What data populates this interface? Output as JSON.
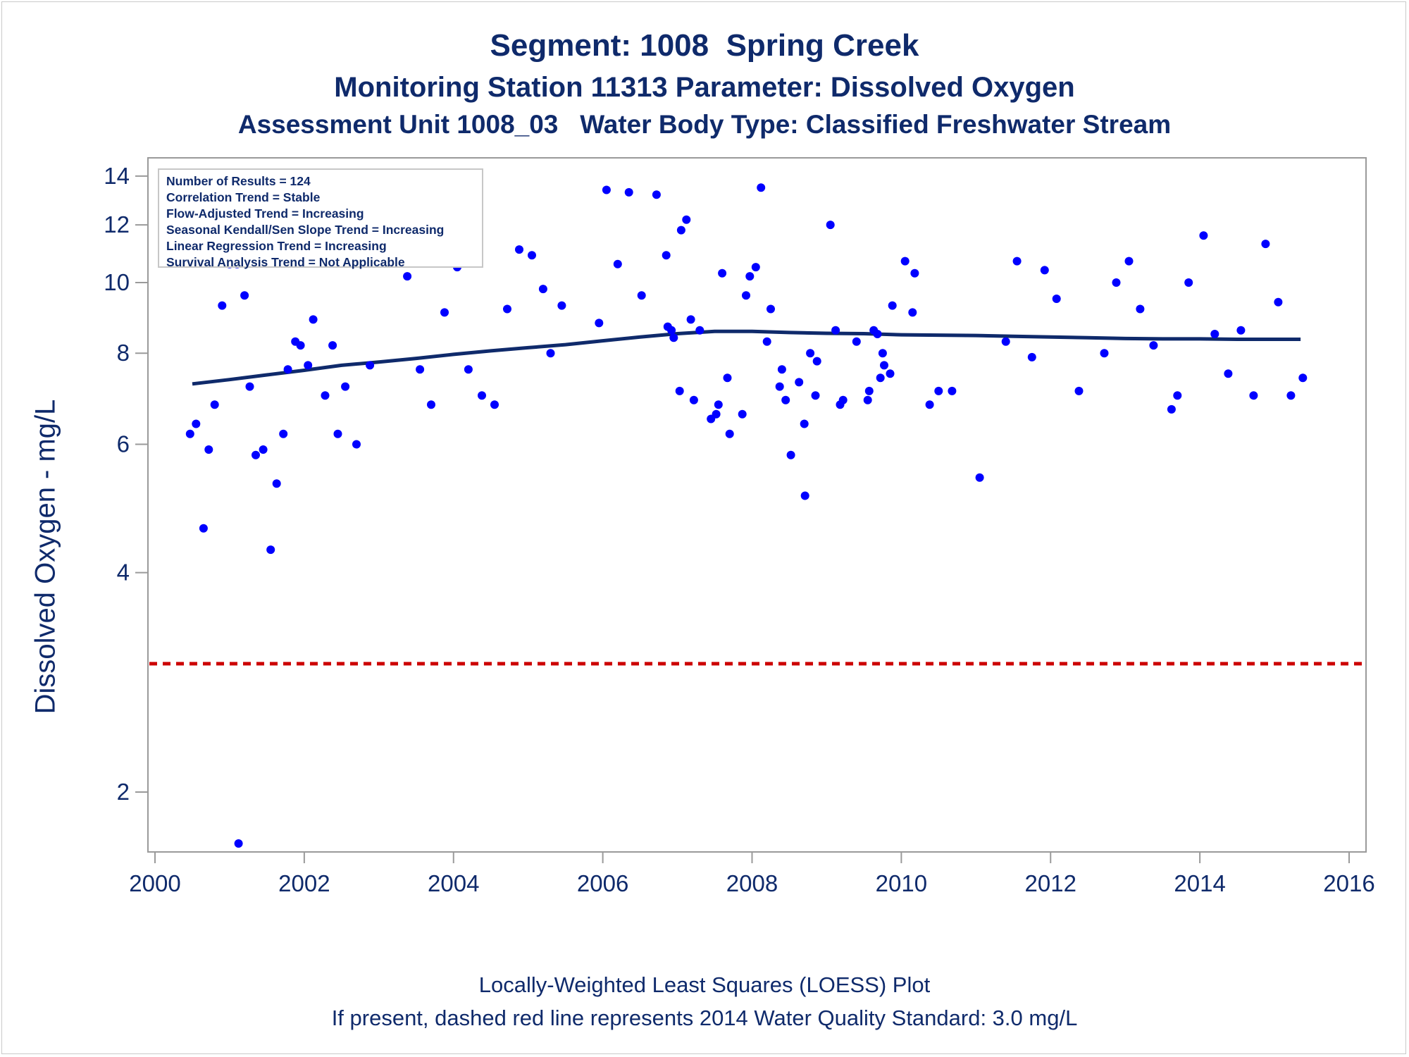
{
  "header": {
    "title": "Segment: 1008  Spring Creek",
    "subtitle": "Monitoring Station 11313 Parameter: Dissolved Oxygen",
    "subtitle2": "Assessment Unit 1008_03   Water Body Type: Classified Freshwater Stream"
  },
  "stats_box": {
    "lines": [
      "Number of Results = 124",
      "Correlation Trend = Stable",
      "Flow-Adjusted Trend = Increasing",
      "Seasonal Kendall/Sen Slope Trend = Increasing",
      "Linear Regression Trend = Increasing",
      "Survival Analysis Trend = Not Applicable"
    ]
  },
  "footnotes": {
    "line1": "Locally-Weighted Least Squares (LOESS) Plot",
    "line2": "If present, dashed red line represents 2014 Water Quality Standard: 3.0 mg/L"
  },
  "colors": {
    "text": "#0f2a6b",
    "points": "#0000ff",
    "loess": "#0f2a6b",
    "standard_line": "#cc0000",
    "axis": "#9a9a9a"
  },
  "chart_data": {
    "type": "scatter",
    "title": "Segment: 1008  Spring Creek",
    "xlabel": "",
    "ylabel": "Dissolved Oxygen - mg/L",
    "xlim": [
      2000,
      2016
    ],
    "ylim": [
      1.7,
      14.6
    ],
    "yscale": "log",
    "xticks": [
      2000,
      2002,
      2004,
      2006,
      2008,
      2010,
      2012,
      2014,
      2016
    ],
    "yticks": [
      2,
      4,
      6,
      8,
      10,
      12,
      14
    ],
    "grid": false,
    "series": [
      {
        "type": "scatter",
        "points": [
          [
            2000.47,
            6.2
          ],
          [
            2000.55,
            6.4
          ],
          [
            2000.65,
            4.6
          ],
          [
            2000.72,
            5.9
          ],
          [
            2000.8,
            6.8
          ],
          [
            2000.9,
            9.3
          ],
          [
            2001.0,
            10.6
          ],
          [
            2001.1,
            10.6
          ],
          [
            2001.12,
            1.7
          ],
          [
            2001.2,
            9.6
          ],
          [
            2001.27,
            7.2
          ],
          [
            2001.35,
            5.8
          ],
          [
            2001.45,
            5.9
          ],
          [
            2001.55,
            4.3
          ],
          [
            2001.63,
            5.3
          ],
          [
            2001.72,
            6.2
          ],
          [
            2001.78,
            7.6
          ],
          [
            2001.88,
            8.3
          ],
          [
            2001.95,
            8.2
          ],
          [
            2002.05,
            7.7
          ],
          [
            2002.12,
            8.9
          ],
          [
            2002.28,
            7.0
          ],
          [
            2002.38,
            8.2
          ],
          [
            2002.45,
            6.2
          ],
          [
            2002.55,
            7.2
          ],
          [
            2002.7,
            6.0
          ],
          [
            2002.88,
            7.7
          ],
          [
            2003.38,
            10.2
          ],
          [
            2003.55,
            7.6
          ],
          [
            2003.7,
            6.8
          ],
          [
            2003.88,
            9.1
          ],
          [
            2004.05,
            10.5
          ],
          [
            2004.2,
            7.6
          ],
          [
            2004.38,
            7.0
          ],
          [
            2004.55,
            6.8
          ],
          [
            2004.72,
            9.2
          ],
          [
            2004.88,
            11.1
          ],
          [
            2005.05,
            10.9
          ],
          [
            2005.2,
            9.8
          ],
          [
            2005.3,
            8.0
          ],
          [
            2005.45,
            9.3
          ],
          [
            2005.95,
            8.8
          ],
          [
            2006.05,
            13.4
          ],
          [
            2006.2,
            10.6
          ],
          [
            2006.35,
            13.3
          ],
          [
            2006.52,
            9.6
          ],
          [
            2006.72,
            13.2
          ],
          [
            2006.85,
            10.9
          ],
          [
            2006.87,
            8.7
          ],
          [
            2006.92,
            8.6
          ],
          [
            2006.95,
            8.4
          ],
          [
            2007.03,
            7.1
          ],
          [
            2007.05,
            11.8
          ],
          [
            2007.12,
            12.2
          ],
          [
            2007.18,
            8.9
          ],
          [
            2007.22,
            6.9
          ],
          [
            2007.3,
            8.6
          ],
          [
            2007.45,
            6.5
          ],
          [
            2007.52,
            6.6
          ],
          [
            2007.55,
            6.8
          ],
          [
            2007.6,
            10.3
          ],
          [
            2007.67,
            7.4
          ],
          [
            2007.7,
            6.2
          ],
          [
            2007.87,
            6.6
          ],
          [
            2007.92,
            9.6
          ],
          [
            2007.97,
            10.2
          ],
          [
            2008.05,
            10.5
          ],
          [
            2008.12,
            13.5
          ],
          [
            2008.2,
            8.3
          ],
          [
            2008.25,
            9.2
          ],
          [
            2008.37,
            7.2
          ],
          [
            2008.4,
            7.6
          ],
          [
            2008.45,
            6.9
          ],
          [
            2008.52,
            5.8
          ],
          [
            2008.63,
            7.3
          ],
          [
            2008.7,
            6.4
          ],
          [
            2008.71,
            5.1
          ],
          [
            2008.78,
            8.0
          ],
          [
            2008.85,
            7.0
          ],
          [
            2008.87,
            7.8
          ],
          [
            2009.05,
            12.0
          ],
          [
            2009.12,
            8.6
          ],
          [
            2009.18,
            6.8
          ],
          [
            2009.22,
            6.9
          ],
          [
            2009.4,
            8.3
          ],
          [
            2009.55,
            6.9
          ],
          [
            2009.57,
            7.1
          ],
          [
            2009.63,
            8.6
          ],
          [
            2009.68,
            8.5
          ],
          [
            2009.72,
            7.4
          ],
          [
            2009.75,
            8.0
          ],
          [
            2009.77,
            7.7
          ],
          [
            2009.85,
            7.5
          ],
          [
            2009.88,
            9.3
          ],
          [
            2010.05,
            10.7
          ],
          [
            2010.15,
            9.1
          ],
          [
            2010.18,
            10.3
          ],
          [
            2010.38,
            6.8
          ],
          [
            2010.5,
            7.1
          ],
          [
            2010.68,
            7.1
          ],
          [
            2011.05,
            5.4
          ],
          [
            2011.4,
            8.3
          ],
          [
            2011.55,
            10.7
          ],
          [
            2011.75,
            7.9
          ],
          [
            2011.92,
            10.4
          ],
          [
            2012.08,
            9.5
          ],
          [
            2012.38,
            7.1
          ],
          [
            2012.72,
            8.0
          ],
          [
            2012.88,
            10.0
          ],
          [
            2013.05,
            10.7
          ],
          [
            2013.2,
            9.2
          ],
          [
            2013.38,
            8.2
          ],
          [
            2013.62,
            6.7
          ],
          [
            2013.7,
            7.0
          ],
          [
            2013.85,
            10.0
          ],
          [
            2014.05,
            11.6
          ],
          [
            2014.2,
            8.5
          ],
          [
            2014.38,
            7.5
          ],
          [
            2014.55,
            8.6
          ],
          [
            2014.72,
            7.0
          ],
          [
            2014.88,
            11.3
          ],
          [
            2015.05,
            9.4
          ],
          [
            2015.22,
            7.0
          ],
          [
            2015.38,
            7.4
          ]
        ]
      },
      {
        "type": "line",
        "points": [
          [
            2000.5,
            7.26
          ],
          [
            2001.0,
            7.36
          ],
          [
            2001.5,
            7.47
          ],
          [
            2002.0,
            7.58
          ],
          [
            2002.5,
            7.7
          ],
          [
            2003.0,
            7.78
          ],
          [
            2003.5,
            7.87
          ],
          [
            2004.0,
            7.97
          ],
          [
            2004.5,
            8.06
          ],
          [
            2005.0,
            8.14
          ],
          [
            2005.5,
            8.22
          ],
          [
            2006.0,
            8.32
          ],
          [
            2006.5,
            8.42
          ],
          [
            2007.0,
            8.51
          ],
          [
            2007.5,
            8.57
          ],
          [
            2008.0,
            8.57
          ],
          [
            2008.5,
            8.54
          ],
          [
            2009.0,
            8.52
          ],
          [
            2009.5,
            8.51
          ],
          [
            2010.0,
            8.48
          ],
          [
            2010.5,
            8.47
          ],
          [
            2011.0,
            8.46
          ],
          [
            2011.5,
            8.44
          ],
          [
            2012.0,
            8.42
          ],
          [
            2012.5,
            8.4
          ],
          [
            2013.0,
            8.38
          ],
          [
            2013.5,
            8.37
          ],
          [
            2014.0,
            8.37
          ],
          [
            2014.5,
            8.36
          ],
          [
            2015.0,
            8.36
          ],
          [
            2015.35,
            8.36
          ]
        ]
      }
    ],
    "reference_line": {
      "y": 3.0,
      "style": "dashed"
    }
  }
}
